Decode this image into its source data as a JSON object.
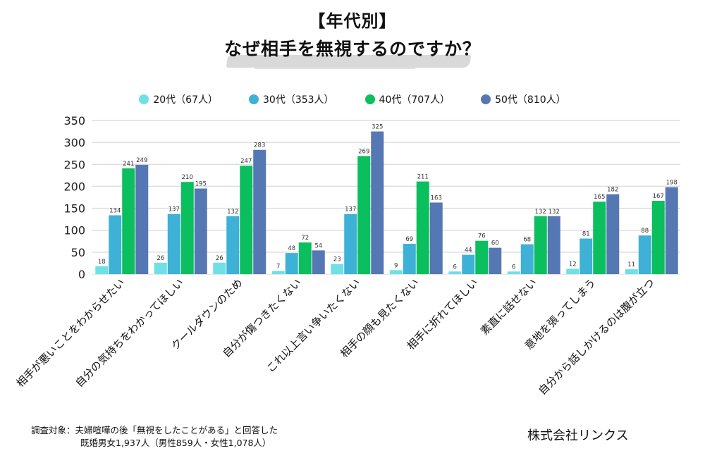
{
  "header": {
    "title_line1": "【年代別】",
    "title_line2": "なぜ相手を無視するのですか？"
  },
  "legend": [
    {
      "label": "20代（67人）",
      "color": "#6EE0E6"
    },
    {
      "label": "30代（353人）",
      "color": "#3DB1D6"
    },
    {
      "label": "40代（707人）",
      "color": "#0BBE5E"
    },
    {
      "label": "50代（810人）",
      "color": "#5577B4"
    }
  ],
  "footer": {
    "survey_line1": "調査対象：夫婦喧嘩の後「無視をしたことがある」と回答した",
    "survey_line2": "既婚男女1,937人（男性859人・女性1,078人）",
    "company": "株式会社リンクス"
  },
  "chart_data": {
    "type": "bar",
    "title": "【年代別】なぜ相手を無視するのですか？",
    "xlabel": "",
    "ylabel": "",
    "ylim": [
      0,
      350
    ],
    "yticks": [
      0,
      50,
      100,
      150,
      200,
      250,
      300,
      350
    ],
    "grid": true,
    "legend_position": "top",
    "categories": [
      "相手が悪いことをわからせたい",
      "自分の気持ちをわかってほしい",
      "クールダウンのため",
      "自分が傷つきたくない",
      "これ以上言い争いたくない",
      "相手の顔も見たくない",
      "相手に折れてほしい",
      "素直に話せない",
      "意地を張ってしまう",
      "自分から話しかけるのは腹が立つ"
    ],
    "series": [
      {
        "name": "20代（67人）",
        "color": "#6EE0E6",
        "values": [
          18,
          26,
          26,
          7,
          23,
          9,
          6,
          6,
          12,
          11
        ]
      },
      {
        "name": "30代（353人）",
        "color": "#3DB1D6",
        "values": [
          134,
          137,
          132,
          48,
          137,
          69,
          44,
          68,
          81,
          88
        ]
      },
      {
        "name": "40代（707人）",
        "color": "#0BBE5E",
        "values": [
          241,
          210,
          247,
          72,
          269,
          211,
          76,
          132,
          165,
          167
        ]
      },
      {
        "name": "50代（810人）",
        "color": "#5577B4",
        "values": [
          249,
          195,
          283,
          54,
          325,
          163,
          60,
          132,
          182,
          198
        ]
      }
    ]
  }
}
